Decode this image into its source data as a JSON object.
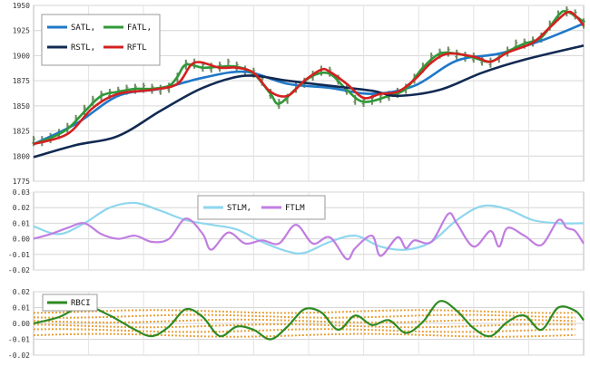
{
  "chart_data": [
    {
      "type": "line",
      "title": "",
      "xlabel": "",
      "ylabel": "",
      "ylim": [
        1775,
        1950
      ],
      "yticks": [
        "1775",
        "1800",
        "1825",
        "1850",
        "1875",
        "1900",
        "1925",
        "1950"
      ],
      "grid": true,
      "legend": "top-left",
      "price_bars": {
        "name": "",
        "color": "#6e8a63",
        "points": [
          [
            0,
            1815
          ],
          [
            2,
            1815
          ],
          [
            4,
            1818
          ],
          [
            6,
            1822
          ],
          [
            8,
            1828
          ],
          [
            10,
            1836
          ],
          [
            12,
            1846
          ],
          [
            14,
            1855
          ],
          [
            16,
            1860
          ],
          [
            18,
            1862
          ],
          [
            20,
            1864
          ],
          [
            22,
            1866
          ],
          [
            24,
            1867
          ],
          [
            26,
            1868
          ],
          [
            28,
            1867
          ],
          [
            30,
            1866
          ],
          [
            32,
            1868
          ],
          [
            34,
            1878
          ],
          [
            36,
            1891
          ],
          [
            38,
            1892
          ],
          [
            40,
            1889
          ],
          [
            42,
            1888
          ],
          [
            44,
            1889
          ],
          [
            46,
            1892
          ],
          [
            48,
            1889
          ],
          [
            50,
            1885
          ],
          [
            52,
            1883
          ],
          [
            54,
            1875
          ],
          [
            56,
            1862
          ],
          [
            58,
            1852
          ],
          [
            60,
            1857
          ],
          [
            62,
            1868
          ],
          [
            64,
            1873
          ],
          [
            66,
            1880
          ],
          [
            68,
            1885
          ],
          [
            70,
            1884
          ],
          [
            72,
            1876
          ],
          [
            74,
            1866
          ],
          [
            76,
            1856
          ],
          [
            78,
            1854
          ],
          [
            80,
            1856
          ],
          [
            82,
            1858
          ],
          [
            84,
            1860
          ],
          [
            86,
            1863
          ],
          [
            88,
            1867
          ],
          [
            90,
            1877
          ],
          [
            92,
            1888
          ],
          [
            94,
            1898
          ],
          [
            96,
            1902
          ],
          [
            98,
            1904
          ],
          [
            100,
            1901
          ],
          [
            102,
            1899
          ],
          [
            104,
            1898
          ],
          [
            106,
            1895
          ],
          [
            108,
            1893
          ],
          [
            110,
            1898
          ],
          [
            112,
            1904
          ],
          [
            114,
            1911
          ],
          [
            116,
            1912
          ],
          [
            118,
            1914
          ],
          [
            120,
            1918
          ],
          [
            122,
            1930
          ],
          [
            124,
            1940
          ],
          [
            126,
            1944
          ],
          [
            128,
            1941
          ],
          [
            130,
            1932
          ]
        ]
      },
      "series": [
        {
          "name": "SATL,",
          "color": "#1f78c8",
          "values": [
            [
              0,
              1812
            ],
            [
              10,
              1832
            ],
            [
              20,
              1860
            ],
            [
              30,
              1867
            ],
            [
              40,
              1878
            ],
            [
              50,
              1884
            ],
            [
              60,
              1872
            ],
            [
              70,
              1868
            ],
            [
              80,
              1862
            ],
            [
              90,
              1870
            ],
            [
              100,
              1895
            ],
            [
              110,
              1902
            ],
            [
              120,
              1915
            ],
            [
              130,
              1932
            ]
          ]
        },
        {
          "name": "FATL,",
          "color": "#2e9a38",
          "values": [
            [
              0,
              1812
            ],
            [
              4,
              1818
            ],
            [
              8,
              1827
            ],
            [
              12,
              1844
            ],
            [
              16,
              1860
            ],
            [
              20,
              1864
            ],
            [
              24,
              1867
            ],
            [
              28,
              1867
            ],
            [
              32,
              1870
            ],
            [
              34,
              1879
            ],
            [
              36,
              1891
            ],
            [
              40,
              1888
            ],
            [
              44,
              1889
            ],
            [
              48,
              1889
            ],
            [
              52,
              1882
            ],
            [
              56,
              1862
            ],
            [
              58,
              1852
            ],
            [
              62,
              1867
            ],
            [
              66,
              1880
            ],
            [
              70,
              1882
            ],
            [
              74,
              1866
            ],
            [
              78,
              1854
            ],
            [
              84,
              1860
            ],
            [
              88,
              1867
            ],
            [
              92,
              1888
            ],
            [
              96,
              1902
            ],
            [
              100,
              1902
            ],
            [
              104,
              1898
            ],
            [
              108,
              1894
            ],
            [
              112,
              1904
            ],
            [
              116,
              1912
            ],
            [
              120,
              1918
            ],
            [
              124,
              1940
            ],
            [
              126,
              1944
            ],
            [
              130,
              1934
            ]
          ]
        },
        {
          "name": "RSTL,",
          "color": "#122a52",
          "values": [
            [
              0,
              1799
            ],
            [
              10,
              1811
            ],
            [
              20,
              1820
            ],
            [
              30,
              1845
            ],
            [
              40,
              1868
            ],
            [
              50,
              1880
            ],
            [
              60,
              1875
            ],
            [
              70,
              1870
            ],
            [
              80,
              1865
            ],
            [
              86,
              1860
            ],
            [
              96,
              1866
            ],
            [
              106,
              1883
            ],
            [
              116,
              1896
            ],
            [
              130,
              1910
            ]
          ]
        },
        {
          "name": "RFTL",
          "color": "#d42020",
          "values": [
            [
              0,
              1812
            ],
            [
              8,
              1822
            ],
            [
              14,
              1848
            ],
            [
              20,
              1862
            ],
            [
              28,
              1866
            ],
            [
              34,
              1872
            ],
            [
              38,
              1893
            ],
            [
              44,
              1888
            ],
            [
              48,
              1888
            ],
            [
              52,
              1883
            ],
            [
              56,
              1864
            ],
            [
              60,
              1860
            ],
            [
              64,
              1875
            ],
            [
              68,
              1886
            ],
            [
              70,
              1884
            ],
            [
              74,
              1872
            ],
            [
              78,
              1858
            ],
            [
              82,
              1862
            ],
            [
              86,
              1864
            ],
            [
              90,
              1876
            ],
            [
              94,
              1893
            ],
            [
              98,
              1902
            ],
            [
              104,
              1899
            ],
            [
              108,
              1894
            ],
            [
              112,
              1903
            ],
            [
              118,
              1913
            ],
            [
              122,
              1928
            ],
            [
              126,
              1943
            ],
            [
              128,
              1940
            ],
            [
              130,
              1930
            ]
          ]
        }
      ]
    },
    {
      "type": "line",
      "title": "",
      "xlabel": "",
      "ylabel": "",
      "ylim": [
        -0.02,
        0.03
      ],
      "yticks": [
        "-0.02",
        "-0.01",
        "0.00",
        "0.01",
        "0.02",
        "0.03"
      ],
      "grid": true,
      "legend": "top-center",
      "series": [
        {
          "name": "STLM,",
          "color": "#8ed6ee",
          "values": [
            [
              0,
              0.008
            ],
            [
              6,
              0.003
            ],
            [
              12,
              0.01
            ],
            [
              18,
              0.02
            ],
            [
              24,
              0.023
            ],
            [
              30,
              0.018
            ],
            [
              36,
              0.012
            ],
            [
              42,
              0.009
            ],
            [
              48,
              0.006
            ],
            [
              54,
              -0.002
            ],
            [
              60,
              -0.008
            ],
            [
              64,
              -0.009
            ],
            [
              70,
              -0.002
            ],
            [
              76,
              0.002
            ],
            [
              82,
              -0.005
            ],
            [
              88,
              -0.007
            ],
            [
              94,
              -0.002
            ],
            [
              100,
              0.012
            ],
            [
              106,
              0.021
            ],
            [
              112,
              0.019
            ],
            [
              118,
              0.012
            ],
            [
              124,
              0.01
            ],
            [
              130,
              0.01
            ]
          ]
        },
        {
          "name": "FTLM",
          "color": "#c07ee0",
          "values": [
            [
              0,
              0.0
            ],
            [
              4,
              0.003
            ],
            [
              8,
              0.007
            ],
            [
              12,
              0.01
            ],
            [
              16,
              0.003
            ],
            [
              20,
              0.0
            ],
            [
              24,
              0.002
            ],
            [
              28,
              -0.002
            ],
            [
              32,
              0.0
            ],
            [
              36,
              0.013
            ],
            [
              40,
              0.003
            ],
            [
              42,
              -0.007
            ],
            [
              46,
              0.004
            ],
            [
              50,
              -0.003
            ],
            [
              54,
              -0.001
            ],
            [
              58,
              -0.003
            ],
            [
              62,
              0.009
            ],
            [
              66,
              -0.003
            ],
            [
              70,
              0.001
            ],
            [
              74,
              -0.013
            ],
            [
              76,
              -0.006
            ],
            [
              80,
              0.002
            ],
            [
              82,
              -0.011
            ],
            [
              86,
              0.001
            ],
            [
              88,
              -0.006
            ],
            [
              90,
              -0.001
            ],
            [
              94,
              -0.002
            ],
            [
              98,
              0.016
            ],
            [
              100,
              0.01
            ],
            [
              104,
              -0.005
            ],
            [
              108,
              0.005
            ],
            [
              110,
              -0.005
            ],
            [
              112,
              0.007
            ],
            [
              116,
              0.002
            ],
            [
              120,
              -0.004
            ],
            [
              124,
              0.012
            ],
            [
              126,
              0.007
            ],
            [
              128,
              0.005
            ],
            [
              130,
              -0.003
            ]
          ]
        }
      ]
    },
    {
      "type": "line",
      "title": "",
      "xlabel": "",
      "ylabel": "",
      "ylim": [
        -0.02,
        0.02
      ],
      "yticks": [
        "-0.02",
        "-0.01",
        "0.00",
        "0.01",
        "0.02"
      ],
      "grid": true,
      "legend": "top-left",
      "series": [
        {
          "name": "RBCI",
          "color": "#2e8a22",
          "values": [
            [
              0,
              0.0
            ],
            [
              6,
              0.004
            ],
            [
              12,
              0.011
            ],
            [
              18,
              0.005
            ],
            [
              24,
              -0.004
            ],
            [
              28,
              -0.008
            ],
            [
              32,
              -0.002
            ],
            [
              36,
              0.009
            ],
            [
              40,
              0.004
            ],
            [
              44,
              -0.008
            ],
            [
              48,
              -0.002
            ],
            [
              52,
              -0.004
            ],
            [
              56,
              -0.01
            ],
            [
              60,
              -0.002
            ],
            [
              64,
              0.009
            ],
            [
              68,
              0.007
            ],
            [
              72,
              -0.004
            ],
            [
              76,
              0.005
            ],
            [
              80,
              -0.001
            ],
            [
              84,
              0.002
            ],
            [
              88,
              -0.006
            ],
            [
              92,
              0.001
            ],
            [
              96,
              0.014
            ],
            [
              100,
              0.008
            ],
            [
              104,
              -0.003
            ],
            [
              108,
              -0.008
            ],
            [
              112,
              0.001
            ],
            [
              116,
              0.005
            ],
            [
              120,
              -0.004
            ],
            [
              124,
              0.01
            ],
            [
              128,
              0.008
            ],
            [
              130,
              0.002
            ]
          ]
        }
      ],
      "bands": {
        "color": "#e8a13a",
        "levels": [
          -0.0075,
          -0.0045,
          -0.0015,
          0.0015,
          0.0045,
          0.0075
        ]
      }
    }
  ]
}
